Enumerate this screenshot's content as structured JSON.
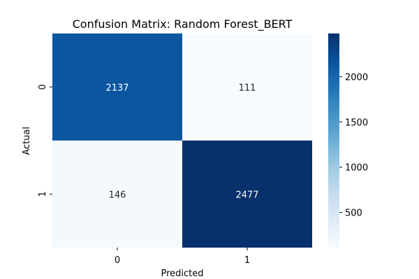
{
  "chart_data": {
    "type": "heatmap",
    "title": "Confusion Matrix: Random Forest_BERT",
    "xlabel": "Predicted",
    "ylabel": "Actual",
    "x_categories": [
      "0",
      "1"
    ],
    "y_categories": [
      "0",
      "1"
    ],
    "values": [
      [
        2137,
        111
      ],
      [
        146,
        2477
      ]
    ],
    "colormap": "Blues",
    "color_range": [
      111,
      2477
    ],
    "colorbar_ticks": [
      500,
      1000,
      1500,
      2000
    ],
    "colorbar_tick_labels": [
      "500",
      "1000",
      "1500",
      "2000"
    ],
    "colors": {
      "low": "#f7fbff",
      "high": "#08306b",
      "light_text": "#ffffff",
      "dark_text": "#262626"
    }
  }
}
